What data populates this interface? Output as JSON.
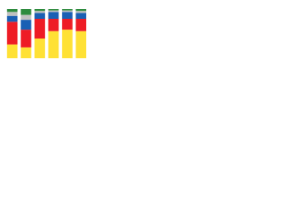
{
  "chart_data": {
    "type": "stacked_bar",
    "categories": [
      null,
      null,
      null,
      null,
      null,
      null
    ],
    "ylim": [
      0,
      100
    ],
    "series": [
      {
        "color": "#ffe135",
        "values": [
          28,
          22,
          40,
          55,
          58,
          55
        ]
      },
      {
        "color": "#ee1c25",
        "values": [
          46,
          36,
          40,
          25,
          22,
          25
        ]
      },
      {
        "color": "#1a5fb4",
        "values": [
          12,
          20,
          12,
          14,
          14,
          12
        ]
      },
      {
        "color": "#c0c0c0",
        "values": [
          8,
          10,
          4,
          3,
          3,
          4
        ]
      },
      {
        "color": "#2e8b3e",
        "values": [
          6,
          12,
          4,
          3,
          3,
          4
        ]
      }
    ]
  }
}
